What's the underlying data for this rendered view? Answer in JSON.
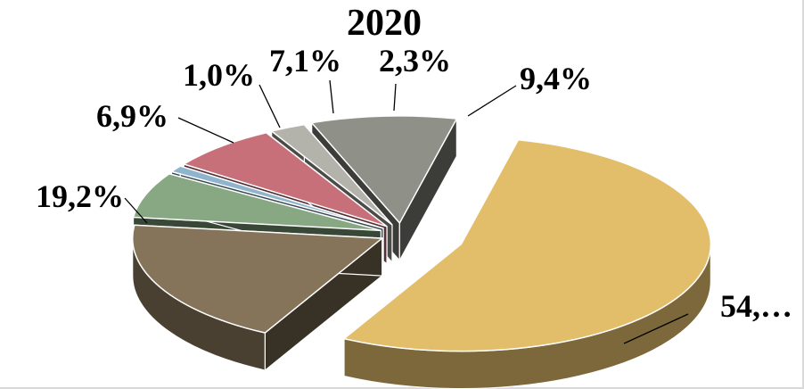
{
  "chart_data": {
    "type": "pie",
    "title": "2020",
    "exploded": true,
    "three_d": true,
    "slices": [
      {
        "label": "54,…",
        "value": 54.1,
        "color": "#e2bd6a"
      },
      {
        "label": "19,2%",
        "value": 19.2,
        "color": "#857459"
      },
      {
        "label": "6,9%",
        "value": 6.9,
        "color": "#87a883"
      },
      {
        "label": "1,0%",
        "value": 1.0,
        "color": "#8fb4cd"
      },
      {
        "label": "7,1%",
        "value": 7.1,
        "color": "#c8707a"
      },
      {
        "label": "2,3%",
        "value": 2.3,
        "color": "#b3b3ac"
      },
      {
        "label": "9,4%",
        "value": 9.4,
        "color": "#8f9087"
      }
    ]
  }
}
